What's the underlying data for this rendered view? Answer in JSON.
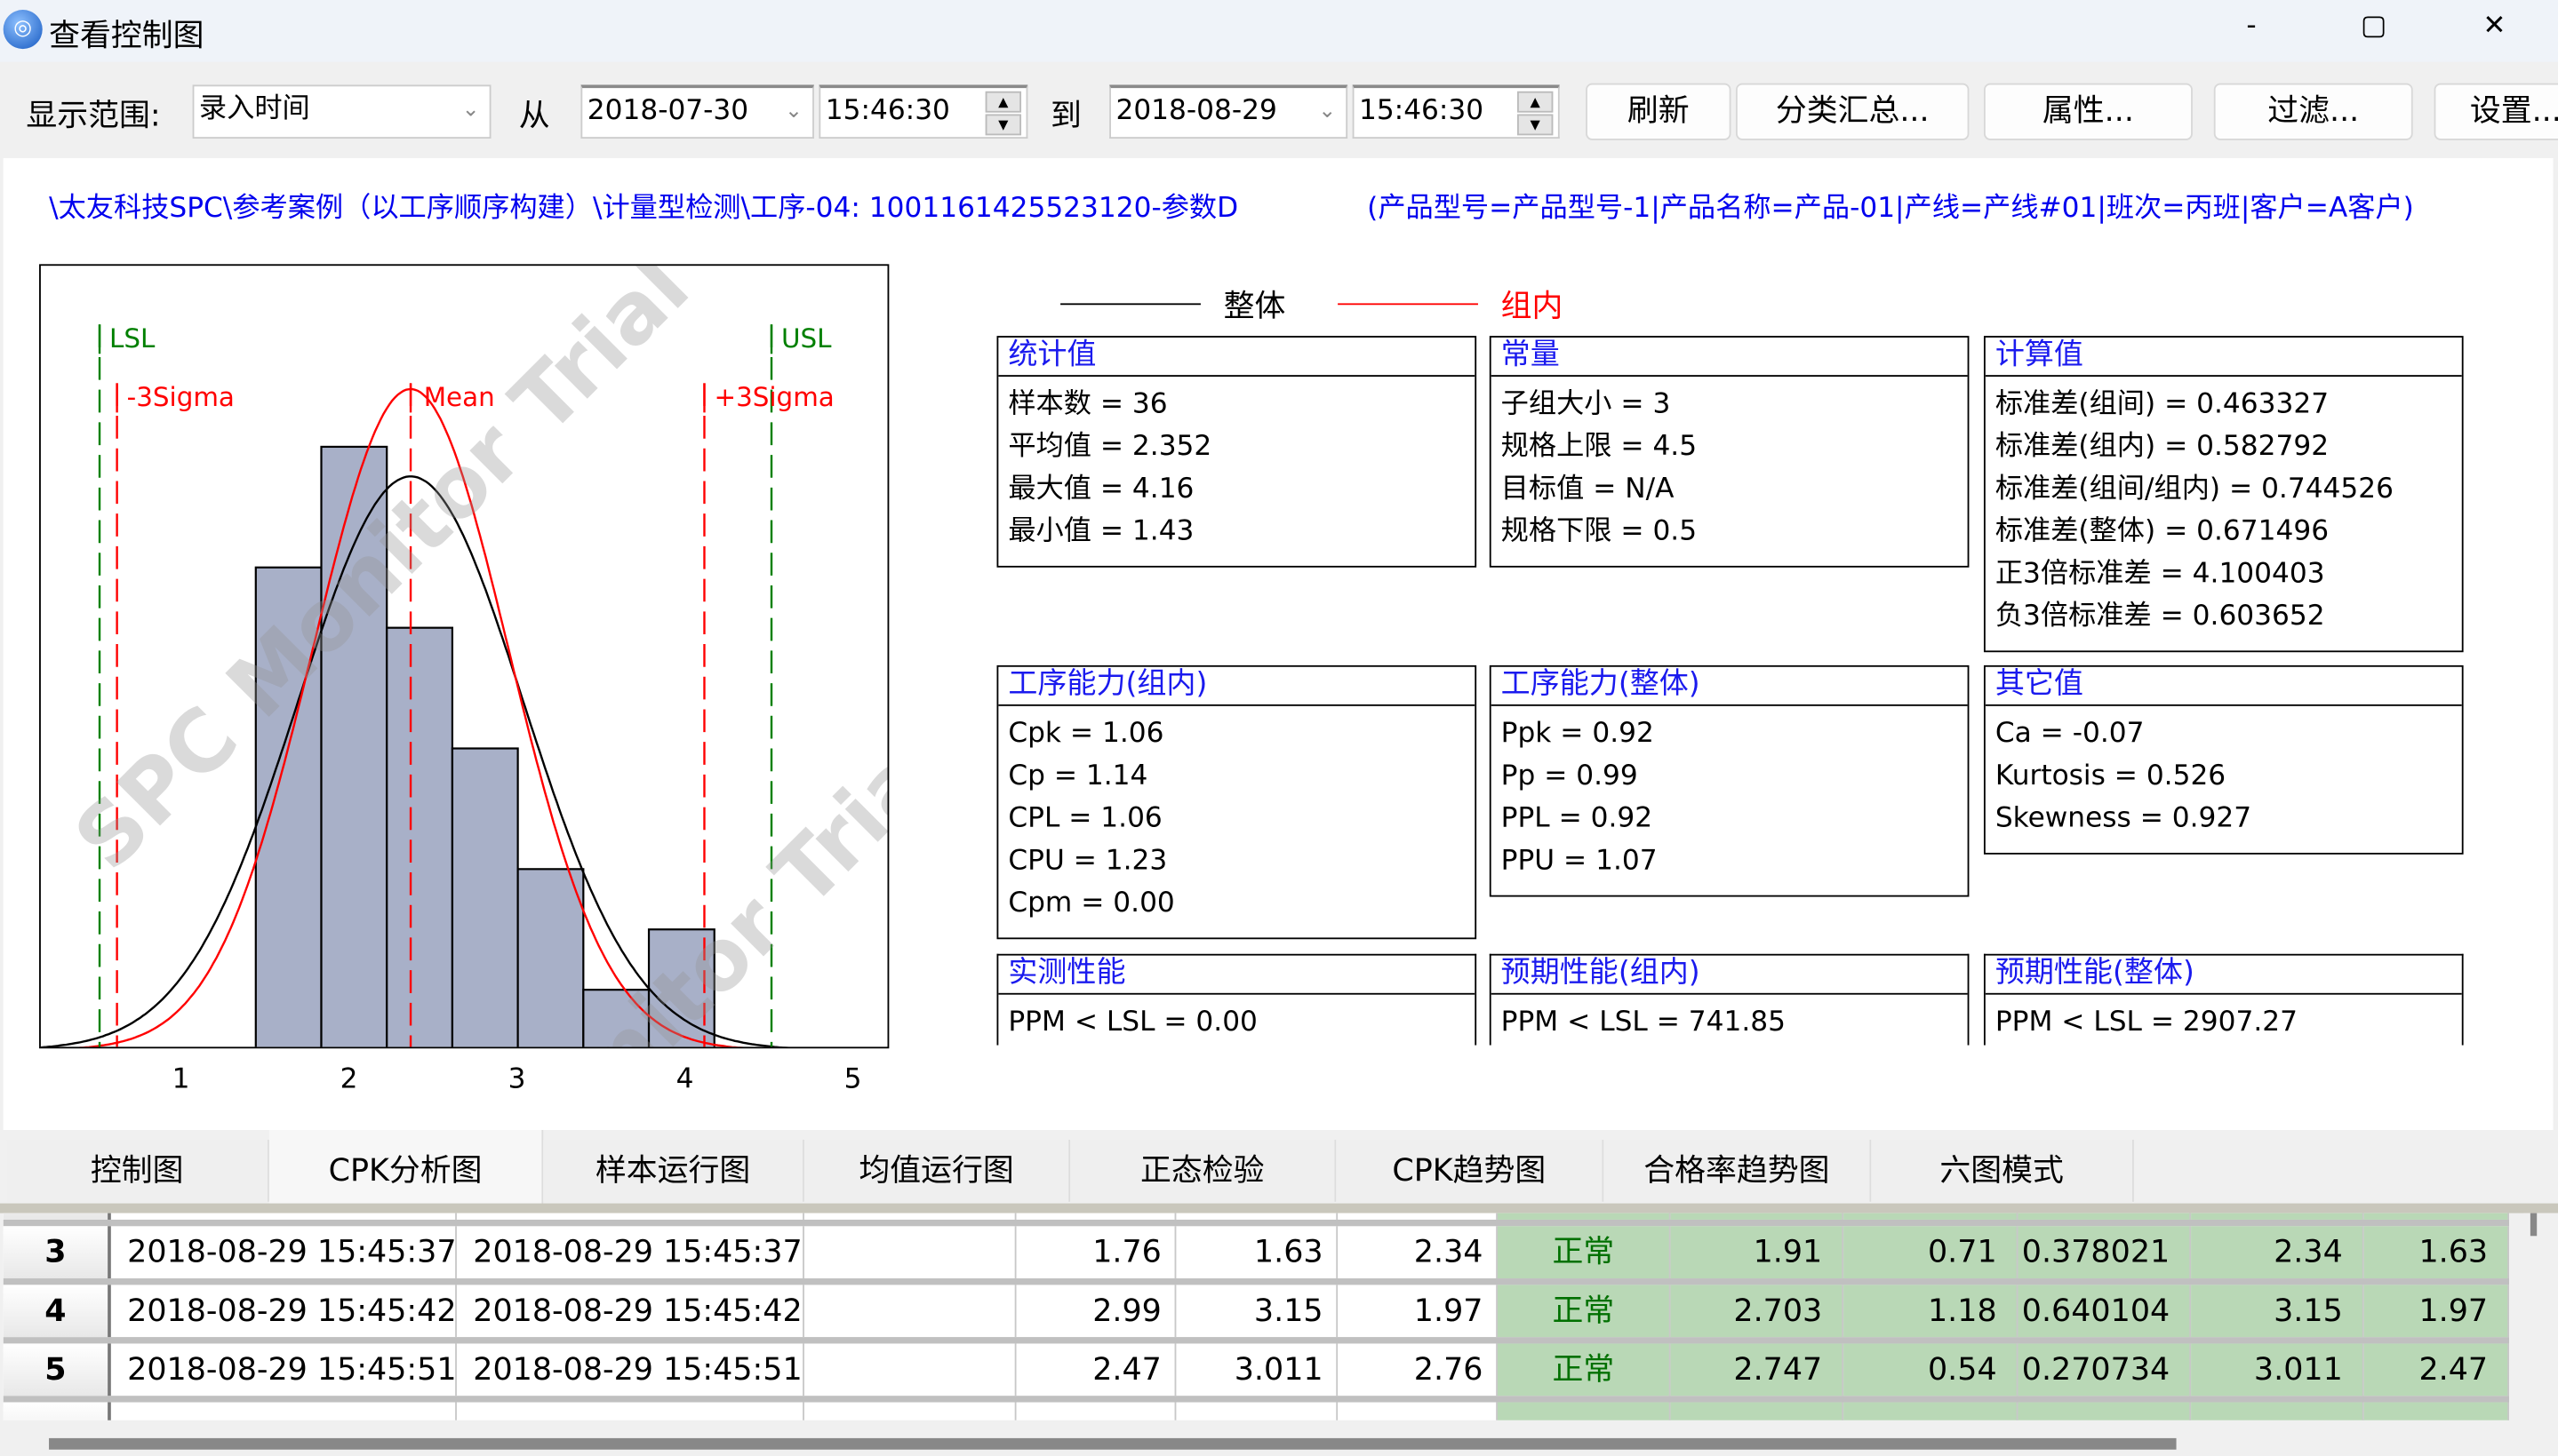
{
  "window": {
    "title": "查看控制图",
    "controls": [
      "-",
      "▢",
      "✕"
    ]
  },
  "toolbar": {
    "range_label": "显示范围:",
    "range_value": "录入时间",
    "from_label": "从",
    "from_date": "2018-07-30",
    "from_time": "15:46:30",
    "to_label": "到",
    "to_date": "2018-08-29",
    "to_time": "15:46:30",
    "buttons": [
      "刷新",
      "分类汇总...",
      "属性...",
      "过滤...",
      "设置..."
    ]
  },
  "path": "\\太友科技SPC\\参考案例（以工序顺序构建）\\计量型检测\\工序-04: 100116142552312​0-参数D",
  "filter": "(产品型号=产品型号-1|产品名称=产品-01|产线=产线#01|班次=丙班|客户=A客户)",
  "legend": {
    "overall": "整体",
    "within": "组内",
    "overall_color": "#000000",
    "within_color": "#ff0000"
  },
  "watermark": "SPC Monitor Trial",
  "chart_data": {
    "type": "bar",
    "title": "",
    "xlabel": "",
    "ylabel": "",
    "xlim": [
      0.15,
      5.21
    ],
    "ylim": [
      0,
      13
    ],
    "x_ticks": [
      "1",
      "2",
      "3",
      "4",
      "5"
    ],
    "bin_start": 1.43,
    "bin_width": 0.39,
    "counts": [
      8,
      10,
      7,
      5,
      3,
      1,
      2
    ],
    "bar_color": "#a8b0c8",
    "curves": [
      {
        "name": "整体",
        "mean": 2.352,
        "sd": 0.671496,
        "color": "#000000"
      },
      {
        "name": "组内",
        "mean": 2.352,
        "sd": 0.582792,
        "color": "#ff0000"
      }
    ],
    "ref_lines": [
      {
        "label": "LSL",
        "x": 0.5,
        "color": "#008000"
      },
      {
        "label": "USL",
        "x": 4.5,
        "color": "#008000"
      },
      {
        "label": "-3Sigma",
        "x": 0.603652,
        "color": "#ff0000"
      },
      {
        "label": "+3Sigma",
        "x": 4.100403,
        "color": "#ff0000"
      },
      {
        "label": "Mean",
        "x": 2.352,
        "color": "#ff0000"
      }
    ]
  },
  "boxes": [
    {
      "title": "统计值",
      "lines": [
        "样本数 = 36",
        "平均值 = 2.352",
        "最大值 = 4.16",
        "最小值 = 1.43"
      ]
    },
    {
      "title": "常量",
      "lines": [
        "子组大小 = 3",
        "规格上限 = 4.5",
        "目标值 = N/A",
        "规格下限 = 0.5"
      ]
    },
    {
      "title": "计算值",
      "lines": [
        "标准差(组间) = 0.463327",
        "标准差(组内) = 0.582792",
        "标准差(组间/组内) = 0.744526",
        "标准差(整体) = 0.671496",
        "正3倍标准差 = 4.100403",
        "负3倍标准差 = 0.603652"
      ]
    },
    {
      "title": "工序能力(组内)",
      "lines": [
        "Cpk = 1.06",
        "Cp = 1.14",
        "CPL = 1.06",
        "CPU = 1.23",
        "Cpm = 0.00"
      ]
    },
    {
      "title": "工序能力(整体)",
      "lines": [
        "Ppk = 0.92",
        "Pp = 0.99",
        "PPL = 0.92",
        "PPU = 1.07"
      ]
    },
    {
      "title": "其它值",
      "lines": [
        "Ca = -0.07",
        "Kurtosis = 0.526",
        "Skewness = 0.927"
      ]
    },
    {
      "title": "实测性能",
      "lines": [
        "PPM < LSL = 0.00"
      ]
    },
    {
      "title": "预期性能(组内)",
      "lines": [
        "PPM < LSL = 741.85"
      ]
    },
    {
      "title": "预期性能(整体)",
      "lines": [
        "PPM < LSL = 2907.27"
      ]
    }
  ],
  "tabs": [
    "控制图",
    "CPK分析图",
    "样本运行图",
    "均值运行图",
    "正态检验",
    "CPK趋势图",
    "合格率趋势图",
    "六图模式"
  ],
  "active_tab": 1,
  "table": {
    "rows": [
      [
        "3",
        "2018-08-29 15:45:37",
        "2018-08-29 15:45:37",
        "",
        "1.76",
        "1.63",
        "2.34",
        "正常",
        "1.91",
        "0.71",
        "0.378021",
        "2.34",
        "1.63"
      ],
      [
        "4",
        "2018-08-29 15:45:42",
        "2018-08-29 15:45:42",
        "",
        "2.99",
        "3.15",
        "1.97",
        "正常",
        "2.703",
        "1.18",
        "0.640104",
        "3.15",
        "1.97"
      ],
      [
        "5",
        "2018-08-29 15:45:51",
        "2018-08-29 15:45:51",
        "",
        "2.47",
        "3.011",
        "2.76",
        "正常",
        "2.747",
        "0.54",
        "0.270734",
        "3.011",
        "2.47"
      ]
    ]
  }
}
